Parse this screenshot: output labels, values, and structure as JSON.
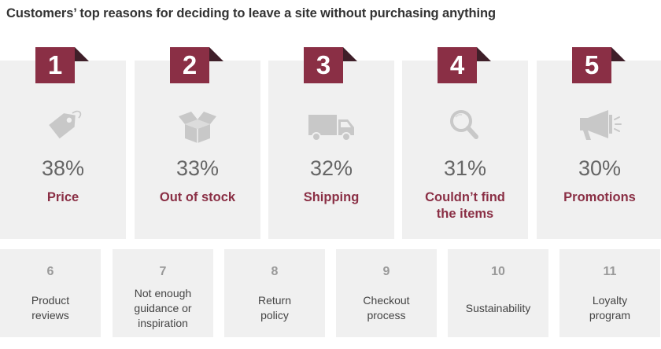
{
  "title": "Customers’ top reasons for deciding to leave a site without purchasing anything",
  "top_reasons": [
    {
      "rank": "1",
      "percent": "38%",
      "label": "Price",
      "icon": "price-tag-icon"
    },
    {
      "rank": "2",
      "percent": "33%",
      "label": "Out of stock",
      "icon": "open-box-icon"
    },
    {
      "rank": "3",
      "percent": "32%",
      "label": "Shipping",
      "icon": "delivery-truck-icon"
    },
    {
      "rank": "4",
      "percent": "31%",
      "label": "Couldn’t find\nthe items",
      "icon": "magnifier-icon"
    },
    {
      "rank": "5",
      "percent": "30%",
      "label": "Promotions",
      "icon": "megaphone-icon"
    }
  ],
  "other_reasons": [
    {
      "rank": "6",
      "label": "Product\nreviews"
    },
    {
      "rank": "7",
      "label": "Not enough\nguidance or\ninspiration"
    },
    {
      "rank": "8",
      "label": "Return\npolicy"
    },
    {
      "rank": "9",
      "label": "Checkout\nprocess"
    },
    {
      "rank": "10",
      "label": "Sustainability"
    },
    {
      "rank": "11",
      "label": "Loyalty\nprogram"
    }
  ],
  "colors": {
    "accent": "#8a2f45",
    "badge_fold": "#3f1f29",
    "card_background": "#f0f0f0",
    "icon_gray": "#c8c8c8"
  }
}
